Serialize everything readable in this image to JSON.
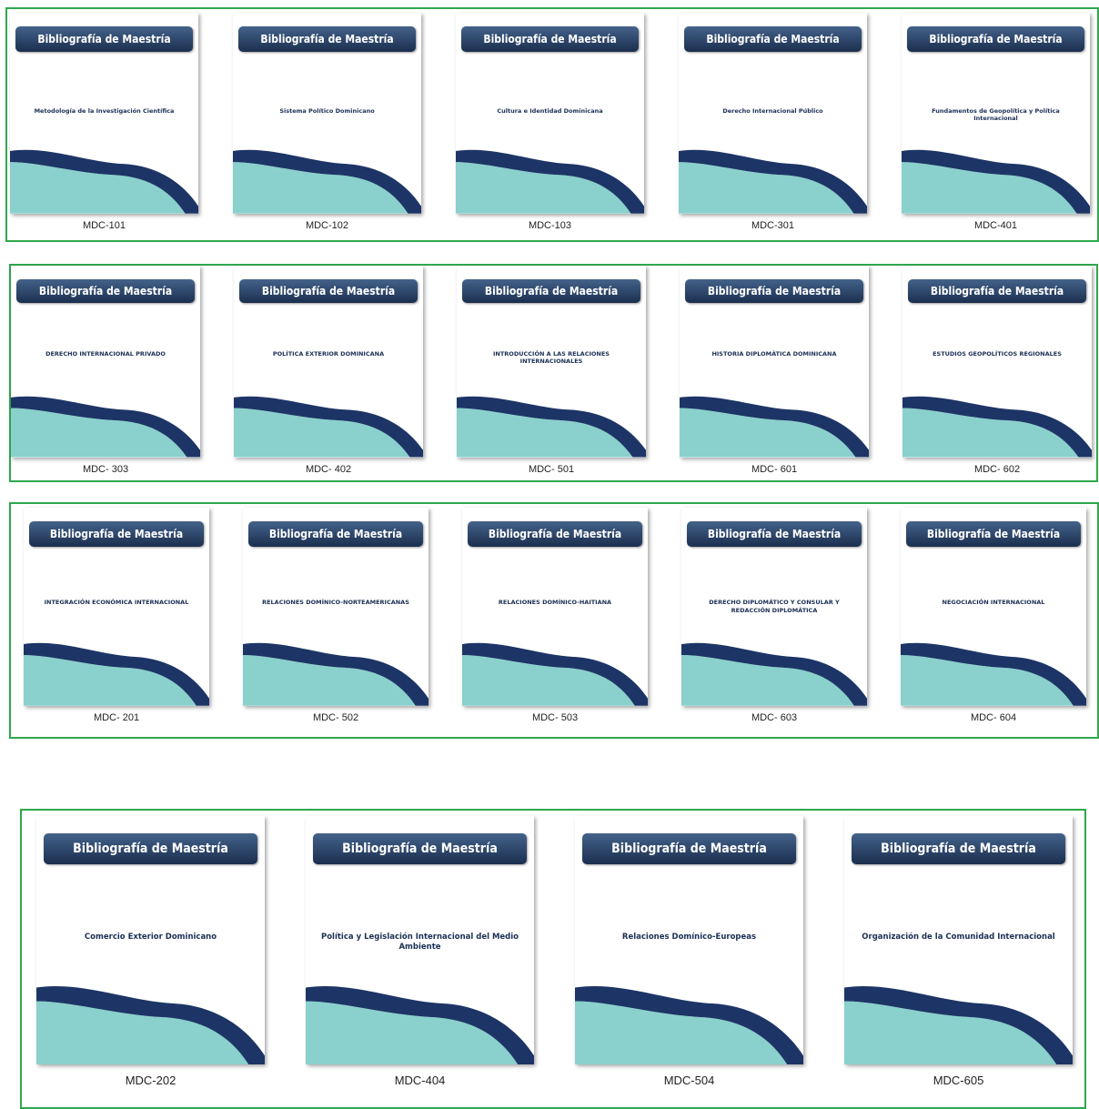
{
  "groups": [
    {
      "items": [
        {
          "header": "Bibliografía de Maestría",
          "title": "Metodología de la Investigación Científica",
          "code": "MDC-101"
        },
        {
          "header": "Bibliografía de Maestría",
          "title": "Sistema Político Dominicano",
          "code": "MDC-102"
        },
        {
          "header": "Bibliografía de Maestría",
          "title": "Cultura e Identidad Dominicana",
          "code": "MDC-103"
        },
        {
          "header": "Bibliografía de Maestría",
          "title": "Derecho Internacional Público",
          "code": "MDC-301"
        },
        {
          "header": "Bibliografía de Maestría",
          "title": "Fundamentos de Geopolítica y Política Internacional",
          "code": "MDC-401"
        }
      ]
    },
    {
      "items": [
        {
          "header": "Bibliografía de Maestría",
          "title": "DERECHO INTERNACIONAL PRIVADO",
          "code": "MDC- 303"
        },
        {
          "header": "Bibliografía de Maestría",
          "title": "POLÍTICA EXTERIOR DOMINICANA",
          "code": "MDC- 402"
        },
        {
          "header": "Bibliografía de Maestría",
          "title": "INTRODUCCIÓN A LAS RELACIONES INTERNACIONALES",
          "code": "MDC- 501"
        },
        {
          "header": "Bibliografía de Maestría",
          "title": "HISTORIA DIPLOMÁTICA DOMINICANA",
          "code": "MDC- 601"
        },
        {
          "header": "Bibliografía de Maestría",
          "title": "ESTUDIOS GEOPOLÍTICOS REGIONALES",
          "code": "MDC- 602"
        }
      ]
    },
    {
      "items": [
        {
          "header": "Bibliografía de Maestría",
          "title": "INTEGRACIÓN ECONÓMICA INTERNACIONAL",
          "code": "MDC- 201"
        },
        {
          "header": "Bibliografía de Maestría",
          "title": "RELACIONES DOMÍNICO-NORTEAMERICANAS",
          "code": "MDC- 502"
        },
        {
          "header": "Bibliografía de Maestría",
          "title": "RELACIONES DOMÍNICO-HAITIANA",
          "code": "MDC- 503"
        },
        {
          "header": "Bibliografía de Maestría",
          "title": "DERECHO DIPLOMÁTICO Y CONSULAR Y REDACCIÓN DIPLOMÁTICA",
          "code": "MDC- 603"
        },
        {
          "header": "Bibliografía de Maestría",
          "title": "NEGOCIACIÓN INTERNACIONAL",
          "code": "MDC- 604"
        }
      ]
    },
    {
      "items": [
        {
          "header": "Bibliografía de Maestría",
          "title": "Comercio Exterior Dominicano",
          "code": "MDC-202"
        },
        {
          "header": "Bibliografía de Maestría",
          "title": "Política y Legislación Internacional del Medio Ambiente",
          "code": "MDC-404"
        },
        {
          "header": "Bibliografía de Maestría",
          "title": "Relaciones Domínico-Europeas",
          "code": "MDC-504"
        },
        {
          "header": "Bibliografía de Maestría",
          "title": "Organización de la Comunidad Internacional",
          "code": "MDC-605"
        }
      ]
    }
  ]
}
